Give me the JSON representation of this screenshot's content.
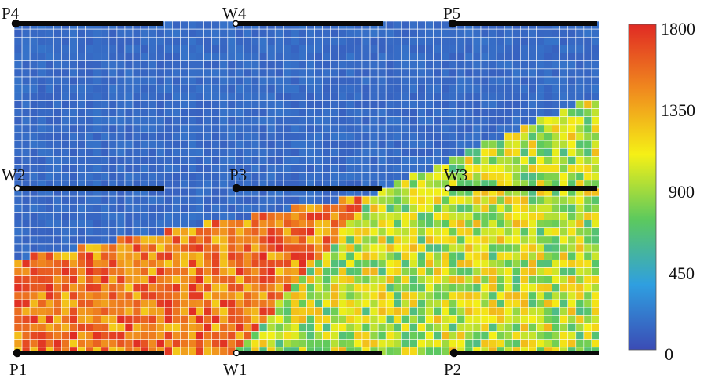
{
  "chart_data": {
    "type": "heatmap",
    "title": "",
    "xlabel": "",
    "ylabel": "",
    "grid": {
      "cols": 74,
      "rows": 42
    },
    "colorbar": {
      "min": 0,
      "max": 1800,
      "ticks": [
        "1800",
        "1350",
        "900",
        "450",
        "0"
      ],
      "tick_values": [
        1800,
        1350,
        900,
        450,
        0
      ],
      "colors": [
        "#3b4cb5",
        "#2f9fe0",
        "#5cc95e",
        "#f5f016",
        "#f08a1e",
        "#e02a24"
      ]
    },
    "zones": [
      {
        "name": "unswept",
        "base_value": 130,
        "jitter": 40
      },
      {
        "name": "front",
        "base_value": 1500,
        "jitter": 300
      },
      {
        "name": "mixed",
        "base_value": 950,
        "jitter": 350
      }
    ],
    "wells": [
      {
        "label": "P4",
        "type": "producer"
      },
      {
        "label": "W4",
        "type": "injector"
      },
      {
        "label": "P5",
        "type": "producer"
      },
      {
        "label": "W2",
        "type": "injector"
      },
      {
        "label": "P3",
        "type": "producer"
      },
      {
        "label": "W3",
        "type": "injector"
      },
      {
        "label": "P1",
        "type": "producer"
      },
      {
        "label": "W1",
        "type": "injector"
      },
      {
        "label": "P2",
        "type": "producer"
      }
    ]
  }
}
